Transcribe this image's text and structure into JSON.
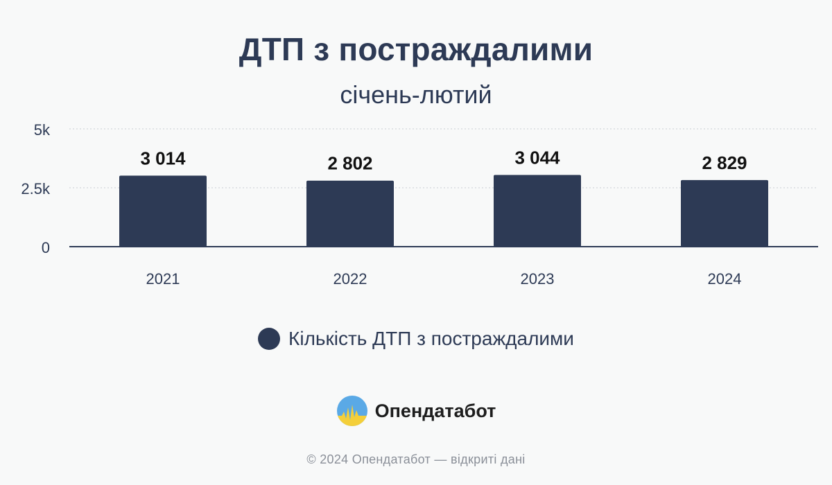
{
  "colors": {
    "bar": "#2d3a55",
    "text": "#2d3a55",
    "grid": "#c9cdd3",
    "background": "#f8f9f9"
  },
  "chart_data": {
    "type": "bar",
    "title": "ДТП з постраждалими",
    "subtitle": "січень-лютий",
    "categories": [
      "2021",
      "2022",
      "2023",
      "2024"
    ],
    "series": [
      {
        "name": "Кількість ДТП з постраждалими",
        "values": [
          3014,
          2802,
          3044,
          2829
        ]
      }
    ],
    "data_labels": [
      "3 014",
      "2 802",
      "3 044",
      "2 829"
    ],
    "ylim": [
      0,
      5000
    ],
    "yticks": [
      {
        "value": 0,
        "label": "0"
      },
      {
        "value": 2500,
        "label": "2.5k"
      },
      {
        "value": 5000,
        "label": "5k"
      }
    ],
    "grid": true,
    "legend": "bottom-center"
  },
  "branding": {
    "logo_icon": "opendatabot-logo-icon",
    "name": "Опендатабот",
    "footer": "© 2024 Опендатабот — відкриті дані"
  }
}
